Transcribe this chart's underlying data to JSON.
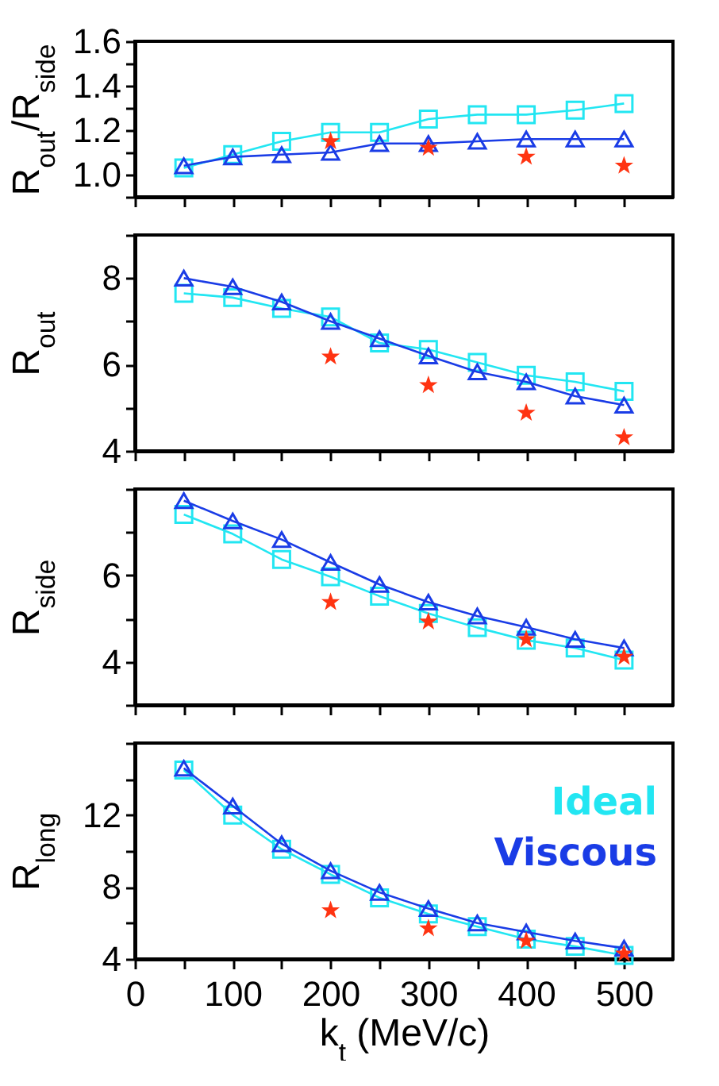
{
  "chart_data": [
    {
      "type": "line",
      "ylabel": "R$_{out}$/R$_{side}$",
      "xlim": [
        0,
        550
      ],
      "xticks": [
        0,
        {
          "value": 50,
          "label": null
        },
        100,
        {
          "value": 150,
          "label": null
        },
        200,
        {
          "value": 250,
          "label": null
        },
        300,
        {
          "value": 350,
          "label": null
        },
        400,
        {
          "value": 450,
          "label": null
        },
        500
      ],
      "ylim": [
        0.9,
        1.6
      ],
      "yticks": [
        {
          "value": 0.9,
          "label": null
        },
        {
          "value": 1.0,
          "label": "1.0"
        },
        {
          "value": 1.1,
          "label": null
        },
        1.2,
        {
          "value": 1.3,
          "label": null
        },
        1.4,
        {
          "value": 1.5,
          "label": null
        },
        1.6
      ],
      "tick_labels": "y",
      "x": [
        50,
        100,
        150,
        200,
        250,
        300,
        350,
        400,
        450,
        500
      ],
      "series": [
        {
          "type": "line",
          "marker": "square",
          "color": "#22e6f2",
          "values": [
            1.03,
            1.09,
            1.15,
            1.19,
            1.19,
            1.25,
            1.27,
            1.27,
            1.29,
            1.32
          ]
        },
        {
          "type": "line",
          "marker": "triangle",
          "color": "#1a3ce6",
          "values": [
            1.04,
            1.08,
            1.09,
            1.1,
            1.14,
            1.14,
            1.15,
            1.16,
            1.16,
            1.16
          ]
        },
        {
          "type": "scatter",
          "marker": "star",
          "color": "#ff3311",
          "x": [
            200,
            300,
            400,
            500
          ],
          "values": [
            1.15,
            1.12,
            1.08,
            1.04
          ]
        }
      ]
    },
    {
      "type": "line",
      "ylabel": "R$_{out}$",
      "xlim": [
        0,
        550
      ],
      "xticks": [
        0,
        {
          "value": 50,
          "label": null
        },
        100,
        {
          "value": 150,
          "label": null
        },
        200,
        {
          "value": 250,
          "label": null
        },
        300,
        {
          "value": 350,
          "label": null
        },
        400,
        {
          "value": 450,
          "label": null
        },
        500
      ],
      "ylim": [
        4,
        9
      ],
      "yticks": [
        4,
        {
          "value": 5,
          "label": null
        },
        6,
        {
          "value": 7,
          "label": null
        },
        8,
        {
          "value": 9,
          "label": null
        }
      ],
      "tick_labels": "y",
      "x": [
        50,
        100,
        150,
        200,
        250,
        300,
        350,
        400,
        450,
        500
      ],
      "series": [
        {
          "type": "line",
          "marker": "square",
          "color": "#22e6f2",
          "values": [
            7.65,
            7.55,
            7.3,
            7.1,
            6.5,
            6.35,
            6.05,
            5.75,
            5.6,
            5.38
          ]
        },
        {
          "type": "line",
          "marker": "triangle",
          "color": "#1a3ce6",
          "values": [
            8.0,
            7.8,
            7.45,
            7.0,
            6.6,
            6.2,
            5.83,
            5.6,
            5.27,
            5.06
          ]
        },
        {
          "type": "scatter",
          "marker": "star",
          "color": "#ff3311",
          "x": [
            200,
            300,
            400,
            500
          ],
          "values": [
            6.18,
            5.52,
            4.88,
            4.31
          ]
        }
      ]
    },
    {
      "type": "line",
      "ylabel": "R$_{side}$",
      "xlim": [
        0,
        550
      ],
      "xticks": [
        0,
        {
          "value": 50,
          "label": null
        },
        100,
        {
          "value": 150,
          "label": null
        },
        200,
        {
          "value": 250,
          "label": null
        },
        300,
        {
          "value": 350,
          "label": null
        },
        400,
        {
          "value": 450,
          "label": null
        },
        500
      ],
      "ylim": [
        3,
        8
      ],
      "yticks": [
        {
          "value": 3,
          "label": null
        },
        4,
        {
          "value": 5,
          "label": null
        },
        6,
        {
          "value": 7,
          "label": null
        },
        {
          "value": 8,
          "label": null
        }
      ],
      "tick_labels": "y",
      "x": [
        50,
        100,
        150,
        200,
        250,
        300,
        350,
        400,
        450,
        500
      ],
      "series": [
        {
          "type": "line",
          "marker": "square",
          "color": "#22e6f2",
          "values": [
            7.41,
            6.96,
            6.37,
            5.97,
            5.52,
            5.12,
            4.79,
            4.5,
            4.32,
            4.04
          ]
        },
        {
          "type": "line",
          "marker": "triangle",
          "color": "#1a3ce6",
          "values": [
            7.73,
            7.26,
            6.83,
            6.3,
            5.79,
            5.38,
            5.06,
            4.8,
            4.52,
            4.32
          ]
        },
        {
          "type": "scatter",
          "marker": "star",
          "color": "#ff3311",
          "x": [
            200,
            300,
            400,
            500
          ],
          "values": [
            5.38,
            4.93,
            4.52,
            4.11
          ]
        }
      ]
    },
    {
      "type": "line",
      "ylabel": "R$_{long}$",
      "xlabel": "k$_{t}$  (MeV/c)",
      "xlim": [
        0,
        550
      ],
      "xticks": [
        0,
        {
          "value": 50,
          "label": null
        },
        100,
        {
          "value": 150,
          "label": null
        },
        200,
        {
          "value": 250,
          "label": null
        },
        300,
        {
          "value": 350,
          "label": null
        },
        400,
        {
          "value": 450,
          "label": null
        },
        500
      ],
      "ylim": [
        4,
        16
      ],
      "yticks": [
        4,
        {
          "value": 6,
          "label": null
        },
        8,
        {
          "value": 10,
          "label": null
        },
        12,
        {
          "value": 14,
          "label": null
        },
        {
          "value": 16,
          "label": null
        }
      ],
      "legend": "top right",
      "x": [
        50,
        100,
        150,
        200,
        250,
        300,
        350,
        400,
        450,
        500
      ],
      "series": [
        {
          "name": "Ideal",
          "type": "line",
          "marker": "square",
          "color": "#22e6f2",
          "values": [
            14.5,
            12.0,
            10.1,
            8.7,
            7.4,
            6.5,
            5.8,
            5.1,
            4.7,
            4.2
          ]
        },
        {
          "name": "Viscous",
          "type": "line",
          "marker": "triangle",
          "color": "#1a3ce6",
          "values": [
            14.6,
            12.5,
            10.4,
            8.9,
            7.7,
            6.8,
            6.0,
            5.5,
            5.0,
            4.6
          ]
        },
        {
          "type": "scatter",
          "marker": "star",
          "color": "#ff3311",
          "x": [
            200,
            300,
            400,
            500
          ],
          "values": [
            6.7,
            5.7,
            5.0,
            4.3
          ]
        }
      ]
    }
  ]
}
